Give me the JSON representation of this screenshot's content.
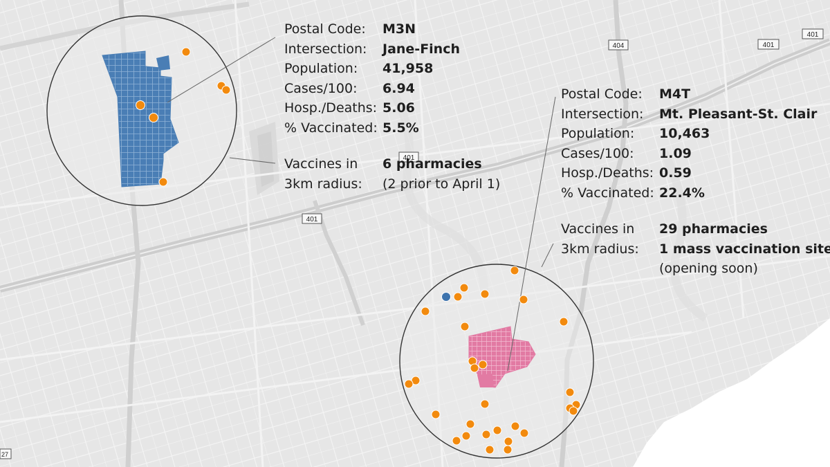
{
  "colors": {
    "background": "#e8e8e8",
    "road": "#ffffff",
    "highway": "#d2d2d2",
    "water": "#ffffff",
    "blue_region": "#4a7eb5",
    "pink_region": "#e27aa3",
    "pharmacy_dot": "#f28a0e",
    "mass_site_dot": "#3d73ad",
    "circle_stroke": "#333333"
  },
  "highway_shields": {
    "hwy401_labels": [
      "401",
      "401",
      "401",
      "401"
    ],
    "hwy404_label": "404",
    "hwy27_label": "27"
  },
  "panel_jane_finch": {
    "rows": [
      {
        "label": "Postal Code:",
        "value": "M3N"
      },
      {
        "label": "Intersection:",
        "value": "Jane-Finch"
      },
      {
        "label": "Population:",
        "value": "41,958"
      },
      {
        "label": "Cases/100:",
        "value": "6.94"
      },
      {
        "label": "Hosp./Deaths:",
        "value": "5.06"
      },
      {
        "label": "% Vaccinated:",
        "value": "5.5%"
      }
    ],
    "vaccines_label_1": "Vaccines in",
    "vaccines_label_2": "3km radius:",
    "vaccines_value_1": "6 pharmacies",
    "vaccines_value_2": "(2 prior to April 1)"
  },
  "panel_mt_pleasant": {
    "rows": [
      {
        "label": "Postal Code:",
        "value": "M4T"
      },
      {
        "label": "Intersection:",
        "value": "Mt. Pleasant-St. Clair"
      },
      {
        "label": "Population:",
        "value": "10,463"
      },
      {
        "label": "Cases/100:",
        "value": "1.09"
      },
      {
        "label": "Hosp./Deaths:",
        "value": "0.59"
      },
      {
        "label": "% Vaccinated:",
        "value": "22.4%"
      }
    ],
    "vaccines_label_1": "Vaccines in",
    "vaccines_label_2": "3km radius:",
    "vaccines_value_1": "29 pharmacies",
    "vaccines_value_2": "1 mass vaccination site",
    "vaccines_value_3": "(opening soon)"
  }
}
